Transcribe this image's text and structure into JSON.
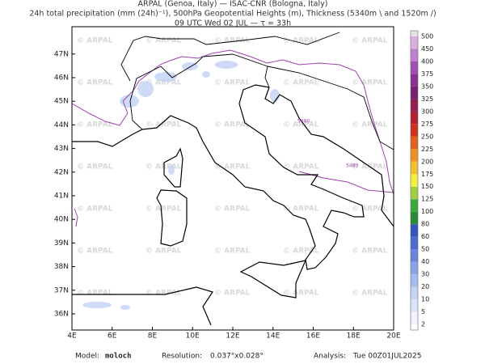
{
  "header": {
    "lines": [
      "ARPAL (Genoa, Italy)  —  ISAC-CNR (Bologna, Italy)",
      "24h total precipitation (mm (24h)⁻¹), 500hPa Geopotential Heights (m), Thickness (5340m \\ and 1520m /)",
      "09 UTC Wed 02 JUL  —  τ = 33h"
    ]
  },
  "map": {
    "lat_labels": [
      "36N",
      "37N",
      "38N",
      "39N",
      "40N",
      "41N",
      "42N",
      "43N",
      "44N",
      "45N",
      "46N",
      "47N"
    ],
    "lon_labels": [
      "4E",
      "6E",
      "8E",
      "10E",
      "12E",
      "14E",
      "16E",
      "18E",
      "20E"
    ],
    "watermark": "© ARPAL",
    "contour_labels": [
      "5480",
      "5480"
    ]
  },
  "colorbar": {
    "labels": [
      "2",
      "5",
      "10",
      "20",
      "30",
      "40",
      "50",
      "60",
      "80",
      "100",
      "125",
      "150",
      "175",
      "200",
      "225",
      "250",
      "275",
      "300",
      "325",
      "350",
      "375",
      "400",
      "450",
      "500"
    ],
    "colors": [
      "#ffffff",
      "#eef3ff",
      "#dbe5fa",
      "#c3d3f4",
      "#a7bbee",
      "#8aa2e6",
      "#6a86dc",
      "#4d6bd0",
      "#3355c0",
      "#2a8a3a",
      "#3ca83c",
      "#a0d040",
      "#f0f040",
      "#f0c030",
      "#f09020",
      "#e06020",
      "#d03020",
      "#b02030",
      "#902050",
      "#7a2070",
      "#8a3090",
      "#a050b0",
      "#c080d0",
      "#d8b0e0",
      "#e4e4e4"
    ]
  },
  "footer": {
    "model_label": "Model:",
    "model": "moloch",
    "resolution_label": "Resolution:",
    "resolution": "0.037°x0.028°",
    "analysis_label": "Analysis:",
    "analysis": "Tue 00Z01JUL2025"
  }
}
